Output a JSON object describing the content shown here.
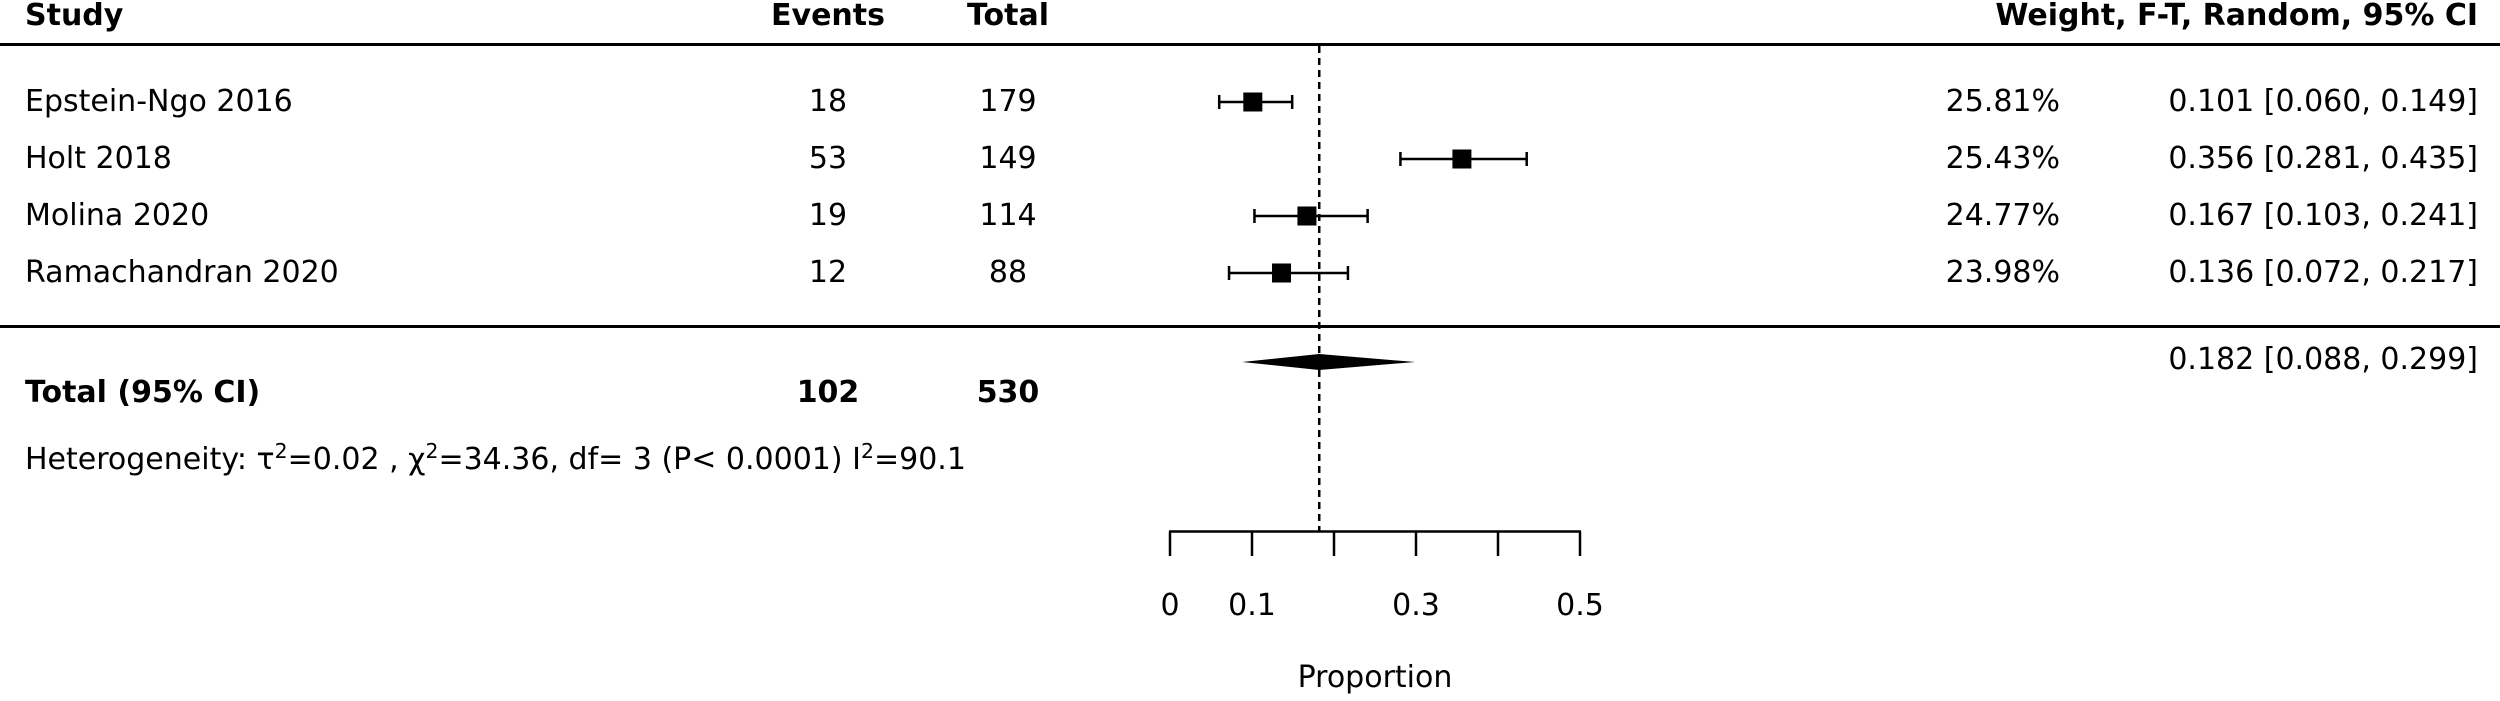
{
  "page": {
    "background_color": "#ffffff",
    "foreground_color": "#000000"
  },
  "chart_data": {
    "type": "forest",
    "headers": {
      "study": "Study",
      "events": "Events",
      "total": "Total",
      "weight_ci": "Weight, F-T, Random, 95% CI"
    },
    "studies": [
      {
        "name": "Epstein-Ngo 2016",
        "events": "18",
        "total": "179",
        "weight": "25.81%",
        "estimate": 0.101,
        "ci_lower": 0.06,
        "ci_upper": 0.149,
        "ci_label": "0.101 [0.060, 0.149]"
      },
      {
        "name": "Holt 2018",
        "events": "53",
        "total": "149",
        "weight": "25.43%",
        "estimate": 0.356,
        "ci_lower": 0.281,
        "ci_upper": 0.435,
        "ci_label": "0.356 [0.281, 0.435]"
      },
      {
        "name": "Molina 2020",
        "events": "19",
        "total": "114",
        "weight": "24.77%",
        "estimate": 0.167,
        "ci_lower": 0.103,
        "ci_upper": 0.241,
        "ci_label": "0.167 [0.103, 0.241]"
      },
      {
        "name": "Ramachandran 2020",
        "events": "12",
        "total": "88",
        "weight": "23.98%",
        "estimate": 0.136,
        "ci_lower": 0.072,
        "ci_upper": 0.217,
        "ci_label": "0.136 [0.072, 0.217]"
      }
    ],
    "overall": {
      "label": "Total (95% CI)",
      "events": "102",
      "total": "530",
      "estimate": 0.182,
      "ci_lower": 0.088,
      "ci_upper": 0.299,
      "ci_label": "0.182 [0.088, 0.299]"
    },
    "reference_line": 0.182,
    "heterogeneity": {
      "p1": "Heterogeneity: τ",
      "s1": "2",
      "p2": "=0.02 , χ",
      "s2": "2",
      "p3": "=34.36, df= 3 (P< 0.0001) I",
      "s3": "2",
      "p4": "=90.1"
    },
    "xlabel": "Proportion",
    "xlim": [
      0,
      0.5
    ],
    "ticks": [
      {
        "value": 0,
        "label": "0"
      },
      {
        "value": 0.1,
        "label": "0.1"
      },
      {
        "value": 0.2,
        "label": ""
      },
      {
        "value": 0.3,
        "label": "0.3"
      },
      {
        "value": 0.4,
        "label": ""
      },
      {
        "value": 0.5,
        "label": "0.5"
      }
    ],
    "marker_color": "#000000"
  }
}
